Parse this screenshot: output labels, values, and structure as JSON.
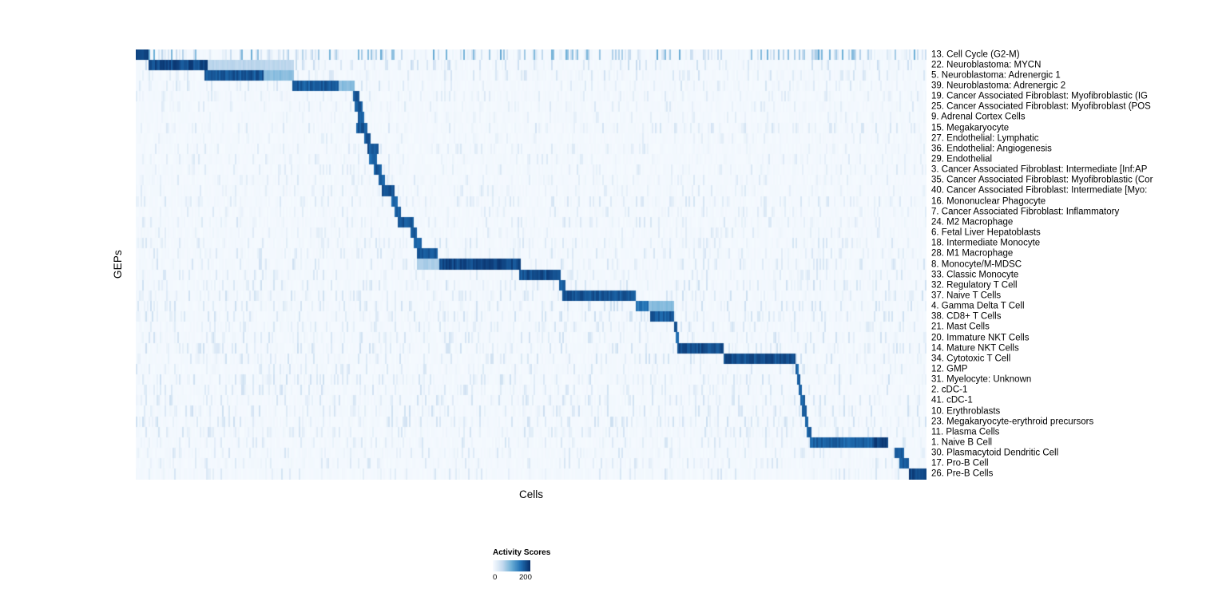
{
  "chart_data": {
    "type": "heatmap",
    "title": "",
    "xlabel": "Cells",
    "ylabel": "GEPs",
    "colormap": "Blues",
    "colormap_stops": [
      "#f7fbff",
      "#c6dbef",
      "#6baed6",
      "#2171b5",
      "#08306b"
    ],
    "background_value": 0.02,
    "legend": {
      "title": "Activity Scores",
      "min": 0,
      "max": 200,
      "ticks": [
        {
          "label": "0",
          "pos": 0.0
        },
        {
          "label": "200",
          "pos": 0.87
        }
      ]
    },
    "n_rows": 41,
    "x_axis_note": "cells ordered by dominant GEP, positions expressed as fraction 0-1 of axis width",
    "rows": [
      {
        "label": "13. Cell Cycle (G2-M)",
        "blocks": [
          {
            "s": 0.0,
            "e": 0.015,
            "v": 1.0
          }
        ],
        "noise": {
          "d": 0.5,
          "m": 0.55
        }
      },
      {
        "label": "22. Neuroblastoma: MYCN",
        "blocks": [
          {
            "s": 0.015,
            "e": 0.09,
            "v": 0.97
          },
          {
            "s": 0.09,
            "e": 0.2,
            "v": 0.3
          }
        ],
        "noise": {
          "d": 0.3,
          "m": 0.25
        }
      },
      {
        "label": "5. Neuroblastoma: Adrenergic 1",
        "blocks": [
          {
            "s": 0.086,
            "e": 0.16,
            "v": 0.92
          },
          {
            "s": 0.16,
            "e": 0.2,
            "v": 0.45
          }
        ],
        "noise": {
          "d": 0.3,
          "m": 0.2
        }
      },
      {
        "label": "39. Neuroblastoma: Adrenergic 2",
        "blocks": [
          {
            "s": 0.197,
            "e": 0.255,
            "v": 0.9
          },
          {
            "s": 0.255,
            "e": 0.275,
            "v": 0.45
          }
        ],
        "noise": {
          "d": 0.3,
          "m": 0.2
        }
      },
      {
        "label": "19. Cancer Associated Fibroblast: Myofibroblastic (IG",
        "blocks": [
          {
            "s": 0.273,
            "e": 0.281,
            "v": 0.92
          }
        ],
        "noise": {
          "d": 0.25,
          "m": 0.15
        }
      },
      {
        "label": "25. Cancer Associated Fibroblast: Myofibroblast (POS",
        "blocks": [
          {
            "s": 0.276,
            "e": 0.285,
            "v": 0.9
          }
        ],
        "noise": {
          "d": 0.25,
          "m": 0.15
        }
      },
      {
        "label": "9. Adrenal Cortex Cells",
        "blocks": [
          {
            "s": 0.28,
            "e": 0.288,
            "v": 0.88
          }
        ],
        "noise": {
          "d": 0.22,
          "m": 0.12
        }
      },
      {
        "label": "15. Megakaryocyte",
        "blocks": [
          {
            "s": 0.277,
            "e": 0.291,
            "v": 0.9
          }
        ],
        "noise": {
          "d": 0.3,
          "m": 0.18
        }
      },
      {
        "label": "27. Endothelial: Lymphatic",
        "blocks": [
          {
            "s": 0.288,
            "e": 0.296,
            "v": 0.9
          }
        ],
        "noise": {
          "d": 0.22,
          "m": 0.12
        }
      },
      {
        "label": "36. Endothelial: Angiogenesis",
        "blocks": [
          {
            "s": 0.291,
            "e": 0.306,
            "v": 0.92
          }
        ],
        "noise": {
          "d": 0.25,
          "m": 0.15
        }
      },
      {
        "label": "29. Endothelial",
        "blocks": [
          {
            "s": 0.294,
            "e": 0.304,
            "v": 0.85
          }
        ],
        "noise": {
          "d": 0.25,
          "m": 0.15
        }
      },
      {
        "label": "3. Cancer Associated Fibroblast: Intermediate [Inf:AP",
        "blocks": [
          {
            "s": 0.301,
            "e": 0.31,
            "v": 0.9
          }
        ],
        "noise": {
          "d": 0.25,
          "m": 0.15
        }
      },
      {
        "label": "35. Cancer Associated Fibroblast: Myofibroblastic (Cor",
        "blocks": [
          {
            "s": 0.306,
            "e": 0.314,
            "v": 0.9
          }
        ],
        "noise": {
          "d": 0.25,
          "m": 0.15
        }
      },
      {
        "label": "40. Cancer Associated Fibroblast: Intermediate [Myo:",
        "blocks": [
          {
            "s": 0.311,
            "e": 0.326,
            "v": 0.95
          }
        ],
        "noise": {
          "d": 0.25,
          "m": 0.15
        }
      },
      {
        "label": "16. Mononuclear Phagocyte",
        "blocks": [
          {
            "s": 0.323,
            "e": 0.331,
            "v": 0.87
          }
        ],
        "noise": {
          "d": 0.3,
          "m": 0.18
        }
      },
      {
        "label": "7. Cancer Associated Fibroblast: Inflammatory",
        "blocks": [
          {
            "s": 0.326,
            "e": 0.335,
            "v": 0.9
          }
        ],
        "noise": {
          "d": 0.25,
          "m": 0.15
        }
      },
      {
        "label": "24. M2 Macrophage",
        "blocks": [
          {
            "s": 0.331,
            "e": 0.35,
            "v": 0.92
          }
        ],
        "noise": {
          "d": 0.3,
          "m": 0.18
        }
      },
      {
        "label": "6. Fetal Liver Hepatoblasts",
        "blocks": [
          {
            "s": 0.346,
            "e": 0.355,
            "v": 0.9
          }
        ],
        "noise": {
          "d": 0.25,
          "m": 0.15
        }
      },
      {
        "label": "18. Intermediate Monocyte",
        "blocks": [
          {
            "s": 0.35,
            "e": 0.36,
            "v": 0.87
          }
        ],
        "noise": {
          "d": 0.3,
          "m": 0.18
        }
      },
      {
        "label": "28. M1 Macrophage",
        "blocks": [
          {
            "s": 0.354,
            "e": 0.38,
            "v": 0.9
          }
        ],
        "noise": {
          "d": 0.3,
          "m": 0.18
        }
      },
      {
        "label": "8. Monocyte/M-MDSC",
        "blocks": [
          {
            "s": 0.355,
            "e": 0.383,
            "v": 0.35
          },
          {
            "s": 0.383,
            "e": 0.486,
            "v": 0.98
          }
        ],
        "noise": {
          "d": 0.35,
          "m": 0.2
        }
      },
      {
        "label": "33. Classic Monocyte",
        "blocks": [
          {
            "s": 0.483,
            "e": 0.536,
            "v": 0.95
          }
        ],
        "noise": {
          "d": 0.3,
          "m": 0.18
        }
      },
      {
        "label": "32. Regulatory T Cell",
        "blocks": [
          {
            "s": 0.535,
            "e": 0.542,
            "v": 0.85
          }
        ],
        "noise": {
          "d": 0.35,
          "m": 0.22
        }
      },
      {
        "label": "37. Naive T Cells",
        "blocks": [
          {
            "s": 0.539,
            "e": 0.632,
            "v": 0.93
          }
        ],
        "noise": {
          "d": 0.35,
          "m": 0.22
        }
      },
      {
        "label": "4. Gamma Delta T Cell",
        "blocks": [
          {
            "s": 0.632,
            "e": 0.648,
            "v": 0.8
          },
          {
            "s": 0.648,
            "e": 0.68,
            "v": 0.45
          }
        ],
        "noise": {
          "d": 0.35,
          "m": 0.22
        }
      },
      {
        "label": "38. CD8+ T Cells",
        "blocks": [
          {
            "s": 0.65,
            "e": 0.68,
            "v": 0.9
          }
        ],
        "noise": {
          "d": 0.35,
          "m": 0.22
        }
      },
      {
        "label": "21. Mast Cells",
        "blocks": [
          {
            "s": 0.679,
            "e": 0.684,
            "v": 0.9
          }
        ],
        "noise": {
          "d": 0.3,
          "m": 0.18
        }
      },
      {
        "label": "20. Immature NKT Cells",
        "blocks": [
          {
            "s": 0.681,
            "e": 0.686,
            "v": 0.85
          }
        ],
        "noise": {
          "d": 0.35,
          "m": 0.2
        }
      },
      {
        "label": "14. Mature NKT Cells",
        "blocks": [
          {
            "s": 0.683,
            "e": 0.743,
            "v": 0.95
          }
        ],
        "noise": {
          "d": 0.35,
          "m": 0.22
        }
      },
      {
        "label": "34. Cytotoxic T Cell",
        "blocks": [
          {
            "s": 0.743,
            "e": 0.834,
            "v": 0.95
          }
        ],
        "noise": {
          "d": 0.35,
          "m": 0.22
        }
      },
      {
        "label": "12. GMP",
        "blocks": [
          {
            "s": 0.833,
            "e": 0.837,
            "v": 0.85
          }
        ],
        "noise": {
          "d": 0.3,
          "m": 0.18
        }
      },
      {
        "label": "31. Myelocyte: Unknown",
        "blocks": [
          {
            "s": 0.835,
            "e": 0.84,
            "v": 0.85
          }
        ],
        "noise": {
          "d": 0.4,
          "m": 0.22
        }
      },
      {
        "label": "2. cDC-1",
        "blocks": [
          {
            "s": 0.838,
            "e": 0.842,
            "v": 0.85
          }
        ],
        "noise": {
          "d": 0.35,
          "m": 0.2
        }
      },
      {
        "label": "41. cDC-1",
        "blocks": [
          {
            "s": 0.84,
            "e": 0.845,
            "v": 0.9
          }
        ],
        "noise": {
          "d": 0.35,
          "m": 0.2
        }
      },
      {
        "label": "10. Erythroblasts",
        "blocks": [
          {
            "s": 0.842,
            "e": 0.847,
            "v": 0.9
          }
        ],
        "noise": {
          "d": 0.4,
          "m": 0.22
        }
      },
      {
        "label": "23. Megakaryocyte-erythroid precursors",
        "blocks": [
          {
            "s": 0.845,
            "e": 0.849,
            "v": 0.85
          }
        ],
        "noise": {
          "d": 0.4,
          "m": 0.22
        }
      },
      {
        "label": "11. Plasma Cells",
        "blocks": [
          {
            "s": 0.847,
            "e": 0.853,
            "v": 0.9
          }
        ],
        "noise": {
          "d": 0.35,
          "m": 0.2
        }
      },
      {
        "label": "1. Naive B Cell",
        "blocks": [
          {
            "s": 0.852,
            "e": 0.93,
            "v": 0.88
          },
          {
            "s": 0.93,
            "e": 0.951,
            "v": 1.0
          }
        ],
        "noise": {
          "d": 0.3,
          "m": 0.18
        }
      },
      {
        "label": "30. Plasmacytoid Dendritic Cell",
        "blocks": [
          {
            "s": 0.958,
            "e": 0.971,
            "v": 0.92
          }
        ],
        "noise": {
          "d": 0.3,
          "m": 0.18
        }
      },
      {
        "label": "17. Pro-B Cell",
        "blocks": [
          {
            "s": 0.965,
            "e": 0.976,
            "v": 0.9
          }
        ],
        "noise": {
          "d": 0.3,
          "m": 0.18
        }
      },
      {
        "label": "26. Pre-B Cells",
        "blocks": [
          {
            "s": 0.976,
            "e": 1.0,
            "v": 1.0
          }
        ],
        "noise": {
          "d": 0.3,
          "m": 0.18
        }
      }
    ]
  }
}
